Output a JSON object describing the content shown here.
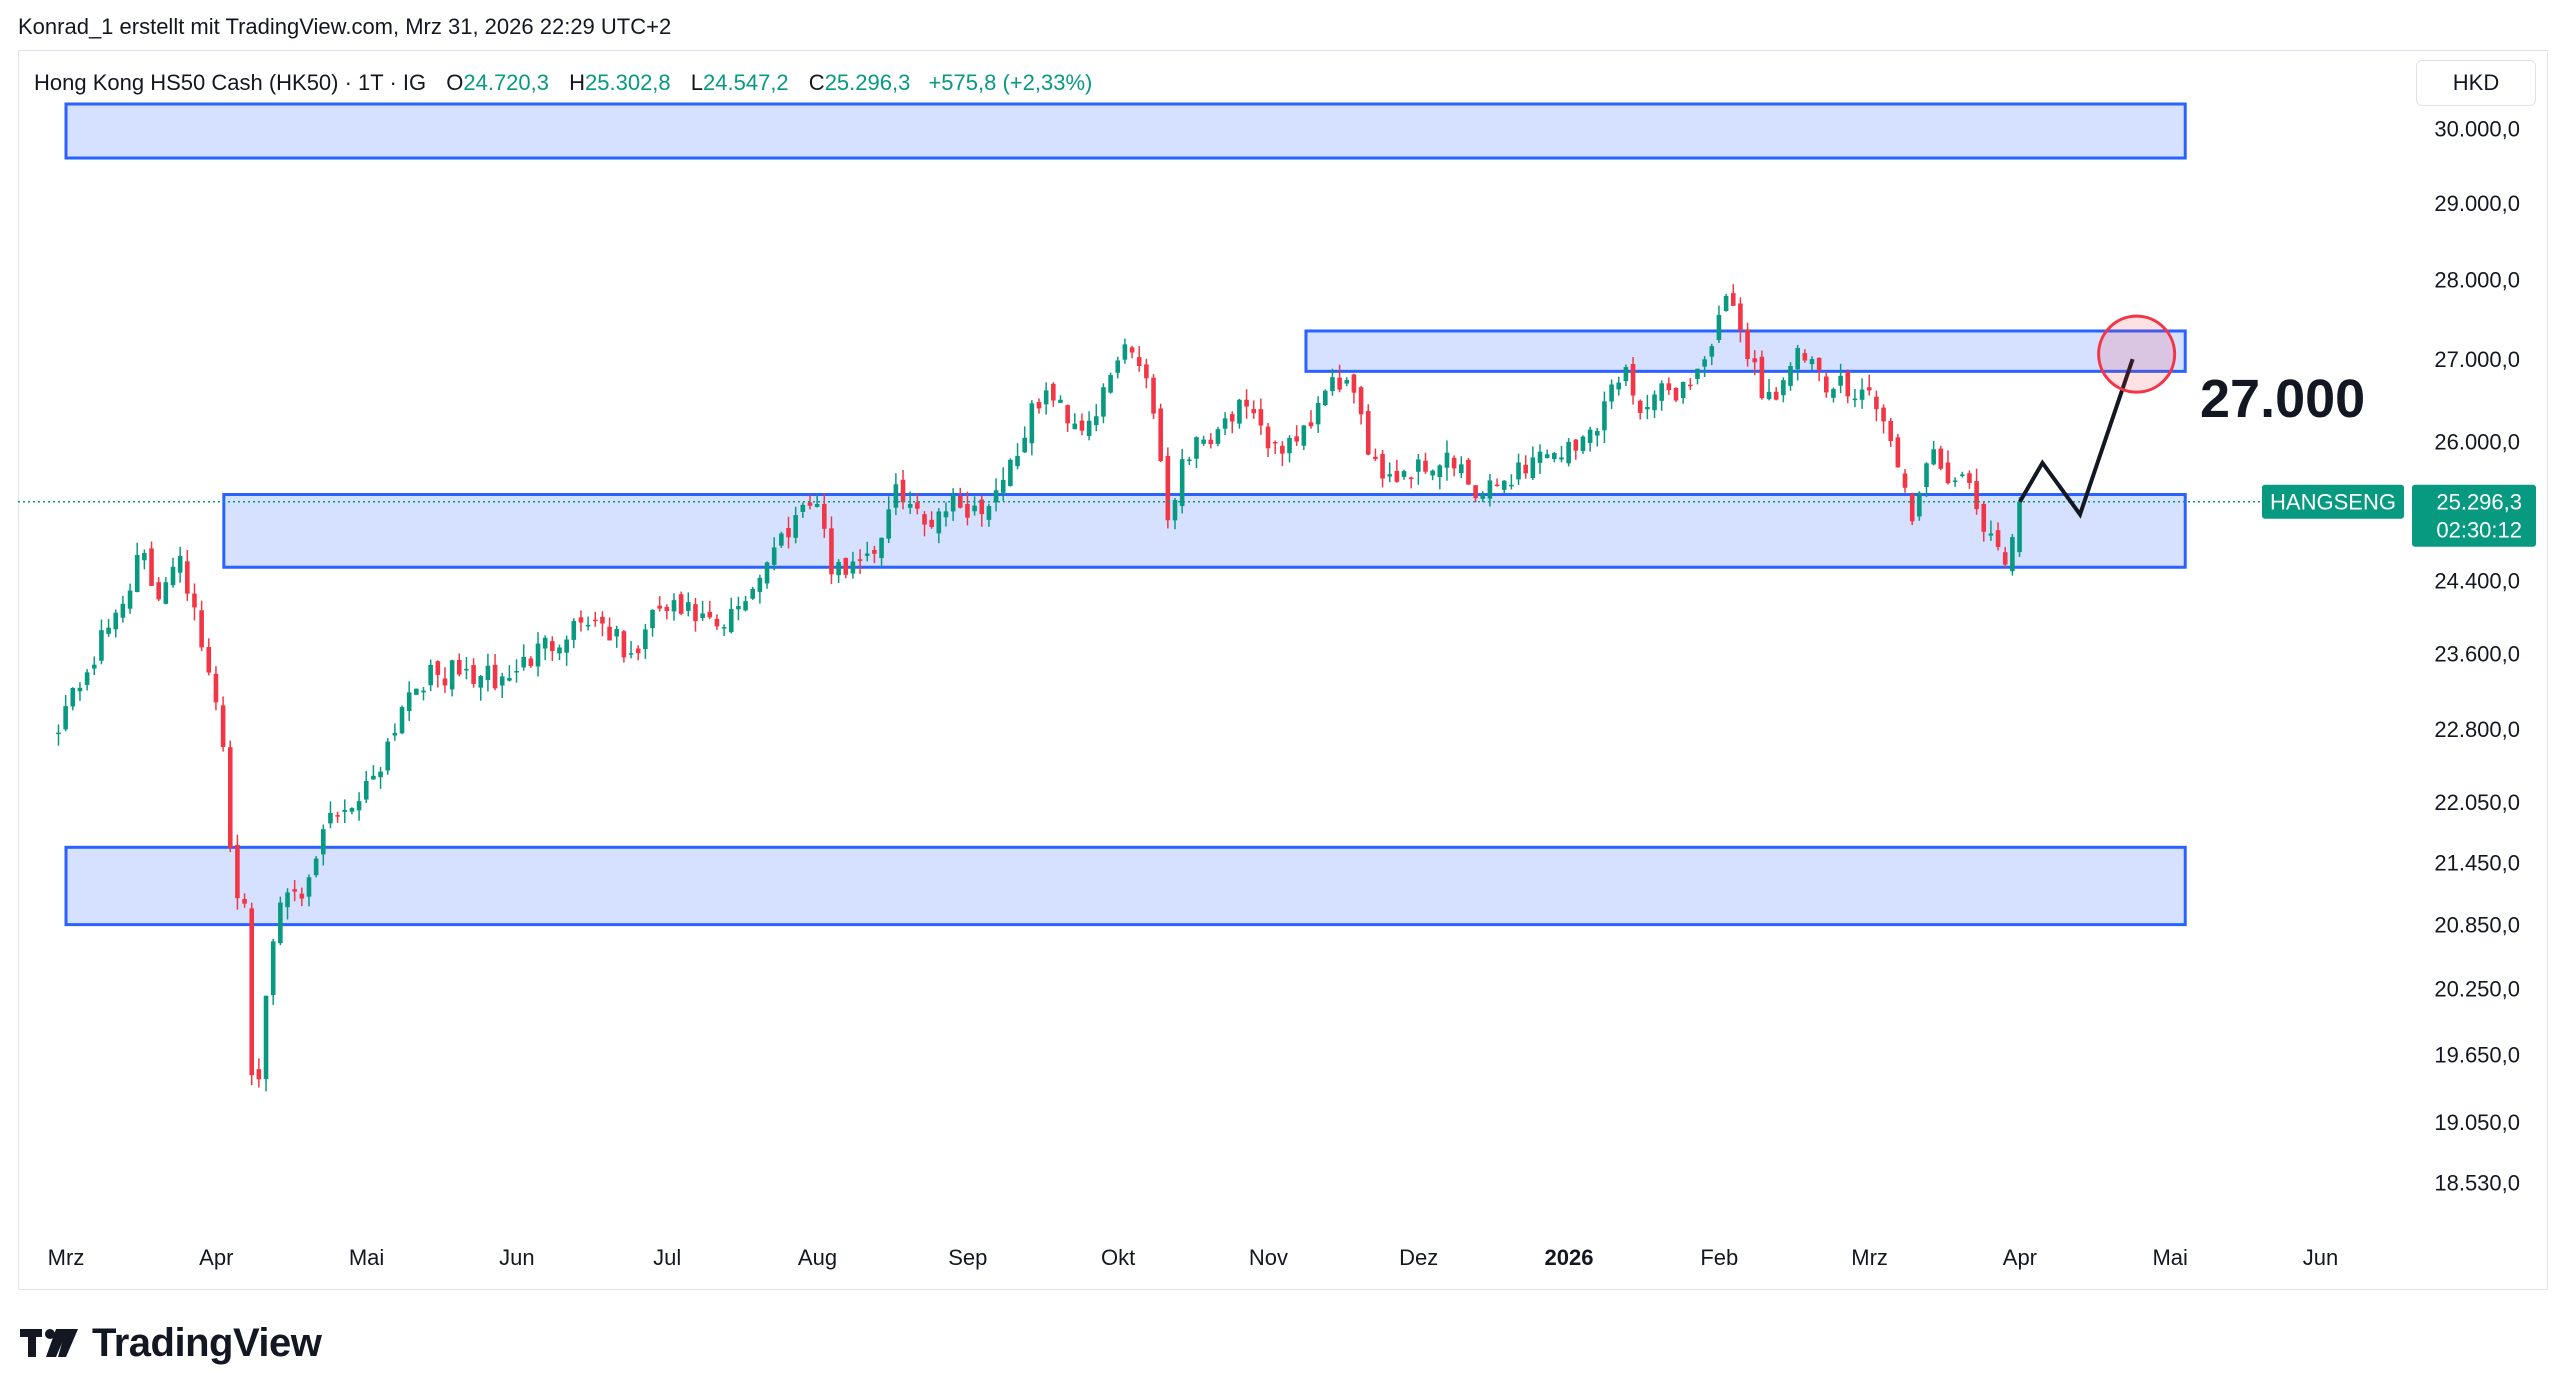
{
  "header": {
    "credit": "Konrad_1 erstellt mit TradingView.com, Mrz 31, 2026 22:29 UTC+2"
  },
  "legend": {
    "symbol": "Hong Kong HS50 Cash (HK50) · 1T · IG",
    "open_label": "O",
    "open": "24.720,3",
    "high_label": "H",
    "high": "25.302,8",
    "low_label": "L",
    "low": "24.547,2",
    "close_label": "C",
    "close": "25.296,3",
    "change": "+575,8 (+2,33%)"
  },
  "currency": "HKD",
  "annotation": {
    "target": "27.000"
  },
  "price_tag": {
    "symbol": "HANGSENG",
    "price": "25.296,3",
    "countdown": "02:30:12"
  },
  "brand": {
    "name": "TradingView"
  },
  "colors": {
    "up": "#089981",
    "down": "#f23645",
    "zone_fill": "#d6e0ff",
    "zone_border": "#2962ff",
    "axis_text": "#131722",
    "target_circle": "#f23645"
  },
  "chart_data": {
    "type": "candlestick",
    "series_name": "Hong Kong HS50 Cash (HK50)",
    "interval": "1T",
    "ylim": [
      18300,
      30900
    ],
    "y_scale": "log",
    "y_ticks": [
      {
        "value": 30000,
        "label": "30.000,0"
      },
      {
        "value": 29000,
        "label": "29.000,0"
      },
      {
        "value": 28000,
        "label": "28.000,0"
      },
      {
        "value": 27000,
        "label": "27.000,0"
      },
      {
        "value": 26000,
        "label": "26.000,0"
      },
      {
        "value": 24400,
        "label": "24.400,0"
      },
      {
        "value": 23600,
        "label": "23.600,0"
      },
      {
        "value": 22800,
        "label": "22.800,0"
      },
      {
        "value": 22050,
        "label": "22.050,0"
      },
      {
        "value": 21450,
        "label": "21.450,0"
      },
      {
        "value": 20850,
        "label": "20.850,0"
      },
      {
        "value": 20250,
        "label": "20.250,0"
      },
      {
        "value": 19650,
        "label": "19.650,0"
      },
      {
        "value": 19050,
        "label": "19.050,0"
      },
      {
        "value": 18530,
        "label": "18.530,0"
      }
    ],
    "x_ticks": [
      {
        "label": "Mrz",
        "month": 0
      },
      {
        "label": "Apr",
        "month": 1
      },
      {
        "label": "Mai",
        "month": 2
      },
      {
        "label": "Jun",
        "month": 3
      },
      {
        "label": "Jul",
        "month": 4
      },
      {
        "label": "Aug",
        "month": 5
      },
      {
        "label": "Sep",
        "month": 6
      },
      {
        "label": "Okt",
        "month": 7
      },
      {
        "label": "Nov",
        "month": 8
      },
      {
        "label": "Dez",
        "month": 9
      },
      {
        "label": "2026",
        "month": 10,
        "bold": true
      },
      {
        "label": "Feb",
        "month": 11
      },
      {
        "label": "Mrz",
        "month": 12
      },
      {
        "label": "Apr",
        "month": 13
      },
      {
        "label": "Mai",
        "month": 14
      },
      {
        "label": "Jun",
        "month": 15
      }
    ],
    "zones": [
      {
        "name": "upper-resistance-zone",
        "from_month": 0,
        "to_month": 14.1,
        "low": 29600,
        "high": 31350
      },
      {
        "name": "resistance-zone-27000",
        "from_month": 8.25,
        "to_month": 14.1,
        "low": 26850,
        "high": 27350
      },
      {
        "name": "support-zone-25000",
        "from_month": 1.05,
        "to_month": 14.1,
        "low": 24550,
        "high": 25380
      },
      {
        "name": "lower-support-zone",
        "from_month": 0,
        "to_month": 14.1,
        "low": 20850,
        "high": 21600
      }
    ],
    "projection_path": [
      {
        "month": 13.0,
        "value": 25296
      },
      {
        "month": 13.15,
        "value": 25750
      },
      {
        "month": 13.4,
        "value": 25150
      },
      {
        "month": 13.75,
        "value": 27000
      }
    ],
    "target": {
      "month": 13.75,
      "value": 27000
    },
    "last_price": 25296.3,
    "keypoints": [
      [
        -0.05,
        22900
      ],
      [
        0.2,
        23600
      ],
      [
        0.35,
        24100
      ],
      [
        0.5,
        24700
      ],
      [
        0.6,
        24200
      ],
      [
        0.75,
        24800
      ],
      [
        0.95,
        23300
      ],
      [
        1.05,
        22700
      ],
      [
        1.1,
        21400
      ],
      [
        1.2,
        20900
      ],
      [
        1.25,
        18900
      ],
      [
        1.35,
        20500
      ],
      [
        1.45,
        21400
      ],
      [
        1.55,
        20900
      ],
      [
        1.75,
        21900
      ],
      [
        1.95,
        22100
      ],
      [
        2.1,
        22500
      ],
      [
        2.3,
        23300
      ],
      [
        2.6,
        23400
      ],
      [
        2.9,
        23300
      ],
      [
        3.2,
        23700
      ],
      [
        3.45,
        24000
      ],
      [
        3.6,
        23900
      ],
      [
        3.75,
        23500
      ],
      [
        3.95,
        24100
      ],
      [
        4.2,
        24000
      ],
      [
        4.35,
        23800
      ],
      [
        4.55,
        24300
      ],
      [
        4.8,
        25000
      ],
      [
        4.95,
        25400
      ],
      [
        5.05,
        25000
      ],
      [
        5.1,
        24400
      ],
      [
        5.2,
        24600
      ],
      [
        5.4,
        24800
      ],
      [
        5.55,
        25500
      ],
      [
        5.7,
        25000
      ],
      [
        5.85,
        25300
      ],
      [
        6.1,
        25200
      ],
      [
        6.3,
        25800
      ],
      [
        6.5,
        26600
      ],
      [
        6.75,
        26200
      ],
      [
        6.9,
        26500
      ],
      [
        7.05,
        27200
      ],
      [
        7.2,
        26800
      ],
      [
        7.3,
        25600
      ],
      [
        7.35,
        24800
      ],
      [
        7.4,
        25800
      ],
      [
        7.6,
        26100
      ],
      [
        7.8,
        26400
      ],
      [
        8.0,
        26000
      ],
      [
        8.2,
        25900
      ],
      [
        8.35,
        26500
      ],
      [
        8.5,
        26800
      ],
      [
        8.65,
        26000
      ],
      [
        8.8,
        25600
      ],
      [
        9.0,
        25700
      ],
      [
        9.2,
        25800
      ],
      [
        9.4,
        25300
      ],
      [
        9.6,
        25600
      ],
      [
        9.85,
        25900
      ],
      [
        10.05,
        25900
      ],
      [
        10.2,
        26300
      ],
      [
        10.35,
        26900
      ],
      [
        10.5,
        26400
      ],
      [
        10.65,
        26600
      ],
      [
        10.8,
        26700
      ],
      [
        10.95,
        27200
      ],
      [
        11.05,
        27700
      ],
      [
        11.2,
        27100
      ],
      [
        11.3,
        26500
      ],
      [
        11.45,
        26800
      ],
      [
        11.55,
        27100
      ],
      [
        11.7,
        26600
      ],
      [
        11.85,
        26700
      ],
      [
        12.0,
        26600
      ],
      [
        12.1,
        26200
      ],
      [
        12.2,
        25600
      ],
      [
        12.3,
        25100
      ],
      [
        12.4,
        25800
      ],
      [
        12.55,
        25600
      ],
      [
        12.7,
        25300
      ],
      [
        12.8,
        24800
      ],
      [
        12.9,
        24600
      ],
      [
        13.0,
        25296
      ]
    ]
  }
}
